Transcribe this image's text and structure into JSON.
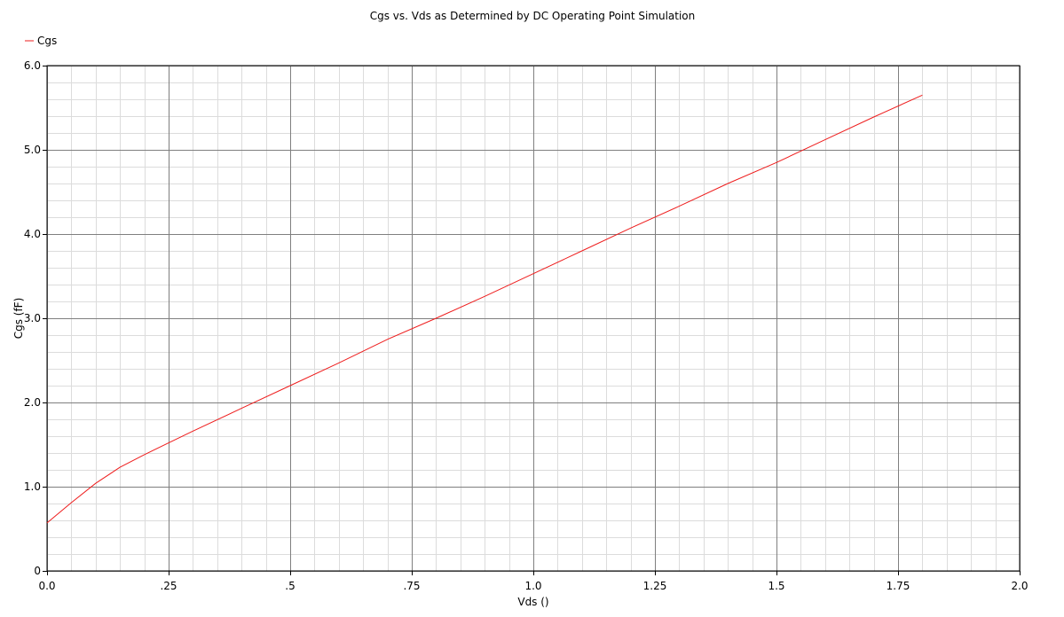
{
  "chart_data": {
    "type": "line",
    "title": "Cgs vs. Vds as Determined by DC Operating Point Simulation",
    "xlabel": "Vds ()",
    "ylabel": "Cgs (fF)",
    "xlim": [
      0,
      2.0
    ],
    "ylim": [
      0,
      6.0
    ],
    "x_ticks": [
      0,
      0.25,
      0.5,
      0.75,
      1.0,
      1.25,
      1.5,
      1.75,
      2.0
    ],
    "x_tick_labels": [
      "0.0",
      ".25",
      ".5",
      ".75",
      "1.0",
      "1.25",
      "1.5",
      "1.75",
      "2.0"
    ],
    "y_ticks": [
      0,
      1,
      2,
      3,
      4,
      5,
      6
    ],
    "y_tick_labels": [
      "0",
      "1.0",
      "2.0",
      "3.0",
      "4.0",
      "5.0",
      "6.0"
    ],
    "grid": true,
    "minor_grid": true,
    "legend_position": "top-left",
    "series": [
      {
        "name": "Cgs",
        "color": "#ee1c1c",
        "x": [
          0.0,
          0.05,
          0.1,
          0.15,
          0.2,
          0.25,
          0.3,
          0.4,
          0.5,
          0.6,
          0.7,
          0.8,
          0.9,
          1.0,
          1.1,
          1.2,
          1.3,
          1.4,
          1.5,
          1.6,
          1.7,
          1.8
        ],
        "y": [
          0.57,
          0.81,
          1.04,
          1.23,
          1.38,
          1.52,
          1.66,
          1.93,
          2.2,
          2.47,
          2.75,
          3.0,
          3.26,
          3.53,
          3.8,
          4.07,
          4.33,
          4.6,
          4.85,
          5.12,
          5.39,
          5.65
        ]
      }
    ]
  }
}
